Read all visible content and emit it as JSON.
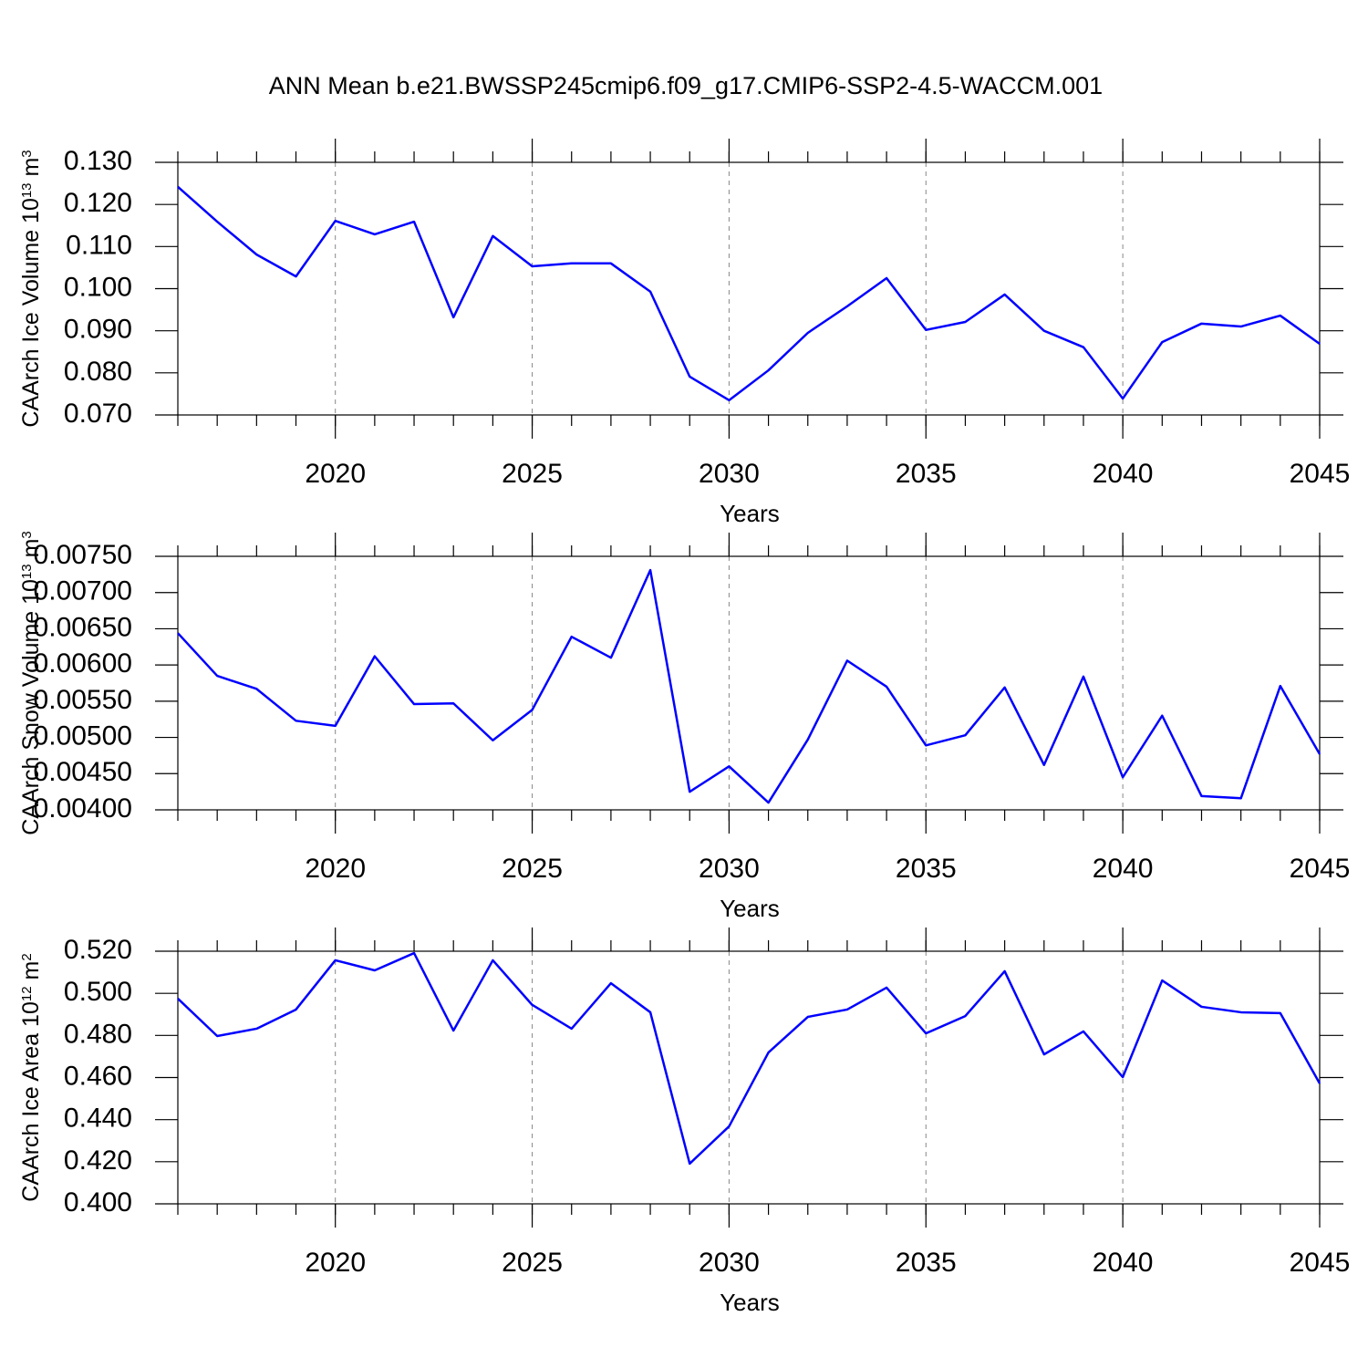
{
  "title": "ANN Mean b.e21.BWSSP245cmip6.f09_g17.CMIP6-SSP2-4.5-WACCM.001",
  "chart_data": [
    {
      "type": "line",
      "ylabel_parts": [
        "CAArch Ice Volume 10",
        "13",
        " m",
        "3"
      ],
      "xlabel": "Years",
      "x": [
        2016,
        2017,
        2018,
        2019,
        2020,
        2021,
        2022,
        2023,
        2024,
        2025,
        2026,
        2027,
        2028,
        2029,
        2030,
        2031,
        2032,
        2033,
        2034,
        2035,
        2036,
        2037,
        2038,
        2039,
        2040,
        2041,
        2042,
        2043,
        2044,
        2045
      ],
      "values": [
        0.1242,
        0.1159,
        0.1081,
        0.1029,
        0.1161,
        0.1129,
        0.1159,
        0.0932,
        0.1125,
        0.1053,
        0.106,
        0.106,
        0.0993,
        0.0791,
        0.0735,
        0.0806,
        0.0895,
        0.0958,
        0.1025,
        0.0902,
        0.0921,
        0.0986,
        0.09,
        0.0861,
        0.0739,
        0.0873,
        0.0917,
        0.091,
        0.0936,
        0.0869
      ],
      "color": "#0000ff",
      "xlim": [
        2016,
        2045
      ],
      "xticks": [
        2020,
        2025,
        2030,
        2035,
        2040,
        2045
      ],
      "ylim": [
        0.07,
        0.13
      ],
      "yticks": [
        {
          "value": 0.07,
          "label": "0.070"
        },
        {
          "value": 0.08,
          "label": "0.080"
        },
        {
          "value": 0.09,
          "label": "0.090"
        },
        {
          "value": 0.1,
          "label": "0.100"
        },
        {
          "value": 0.11,
          "label": "0.110"
        },
        {
          "value": 0.12,
          "label": "0.120"
        },
        {
          "value": 0.13,
          "label": "0.130"
        }
      ],
      "grid": true
    },
    {
      "type": "line",
      "ylabel_parts": [
        "CAArch Snow Volume 10",
        "13",
        " m",
        "3"
      ],
      "xlabel": "Years",
      "x": [
        2016,
        2017,
        2018,
        2019,
        2020,
        2021,
        2022,
        2023,
        2024,
        2025,
        2026,
        2027,
        2028,
        2029,
        2030,
        2031,
        2032,
        2033,
        2034,
        2035,
        2036,
        2037,
        2038,
        2039,
        2040,
        2041,
        2042,
        2043,
        2044,
        2045
      ],
      "values": [
        0.00644,
        0.00585,
        0.00567,
        0.00523,
        0.00516,
        0.00612,
        0.00546,
        0.00547,
        0.00496,
        0.00538,
        0.00639,
        0.0061,
        0.00731,
        0.00425,
        0.0046,
        0.0041,
        0.00497,
        0.00606,
        0.0057,
        0.00489,
        0.00503,
        0.00569,
        0.00462,
        0.00584,
        0.00445,
        0.0053,
        0.00419,
        0.00416,
        0.00571,
        0.00477
      ],
      "color": "#0000ff",
      "xlim": [
        2016,
        2045
      ],
      "xticks": [
        2020,
        2025,
        2030,
        2035,
        2040,
        2045
      ],
      "ylim": [
        0.004,
        0.0075
      ],
      "yticks": [
        {
          "value": 0.004,
          "label": "0.00400"
        },
        {
          "value": 0.0045,
          "label": "0.00450"
        },
        {
          "value": 0.005,
          "label": "0.00500"
        },
        {
          "value": 0.0055,
          "label": "0.00550"
        },
        {
          "value": 0.006,
          "label": "0.00600"
        },
        {
          "value": 0.0065,
          "label": "0.00650"
        },
        {
          "value": 0.007,
          "label": "0.00700"
        },
        {
          "value": 0.0075,
          "label": "0.00750"
        }
      ],
      "grid": true
    },
    {
      "type": "line",
      "ylabel_parts": [
        "CAArch Ice Area 10",
        "12",
        " m",
        "2"
      ],
      "xlabel": "Years",
      "x": [
        2016,
        2017,
        2018,
        2019,
        2020,
        2021,
        2022,
        2023,
        2024,
        2025,
        2026,
        2027,
        2028,
        2029,
        2030,
        2031,
        2032,
        2033,
        2034,
        2035,
        2036,
        2037,
        2038,
        2039,
        2040,
        2041,
        2042,
        2043,
        2044,
        2045
      ],
      "values": [
        0.4975,
        0.4797,
        0.4832,
        0.4923,
        0.5157,
        0.5109,
        0.5191,
        0.4823,
        0.5157,
        0.4945,
        0.4832,
        0.5048,
        0.491,
        0.4191,
        0.4368,
        0.4719,
        0.4888,
        0.4923,
        0.5027,
        0.481,
        0.4892,
        0.5105,
        0.471,
        0.4819,
        0.4602,
        0.5061,
        0.4936,
        0.491,
        0.4906,
        0.4572
      ],
      "color": "#0000ff",
      "xlim": [
        2016,
        2045
      ],
      "xticks": [
        2020,
        2025,
        2030,
        2035,
        2040,
        2045
      ],
      "ylim": [
        0.4,
        0.52
      ],
      "yticks": [
        {
          "value": 0.4,
          "label": "0.400"
        },
        {
          "value": 0.42,
          "label": "0.420"
        },
        {
          "value": 0.44,
          "label": "0.440"
        },
        {
          "value": 0.46,
          "label": "0.460"
        },
        {
          "value": 0.48,
          "label": "0.480"
        },
        {
          "value": 0.5,
          "label": "0.500"
        },
        {
          "value": 0.52,
          "label": "0.520"
        }
      ],
      "grid": true
    }
  ]
}
